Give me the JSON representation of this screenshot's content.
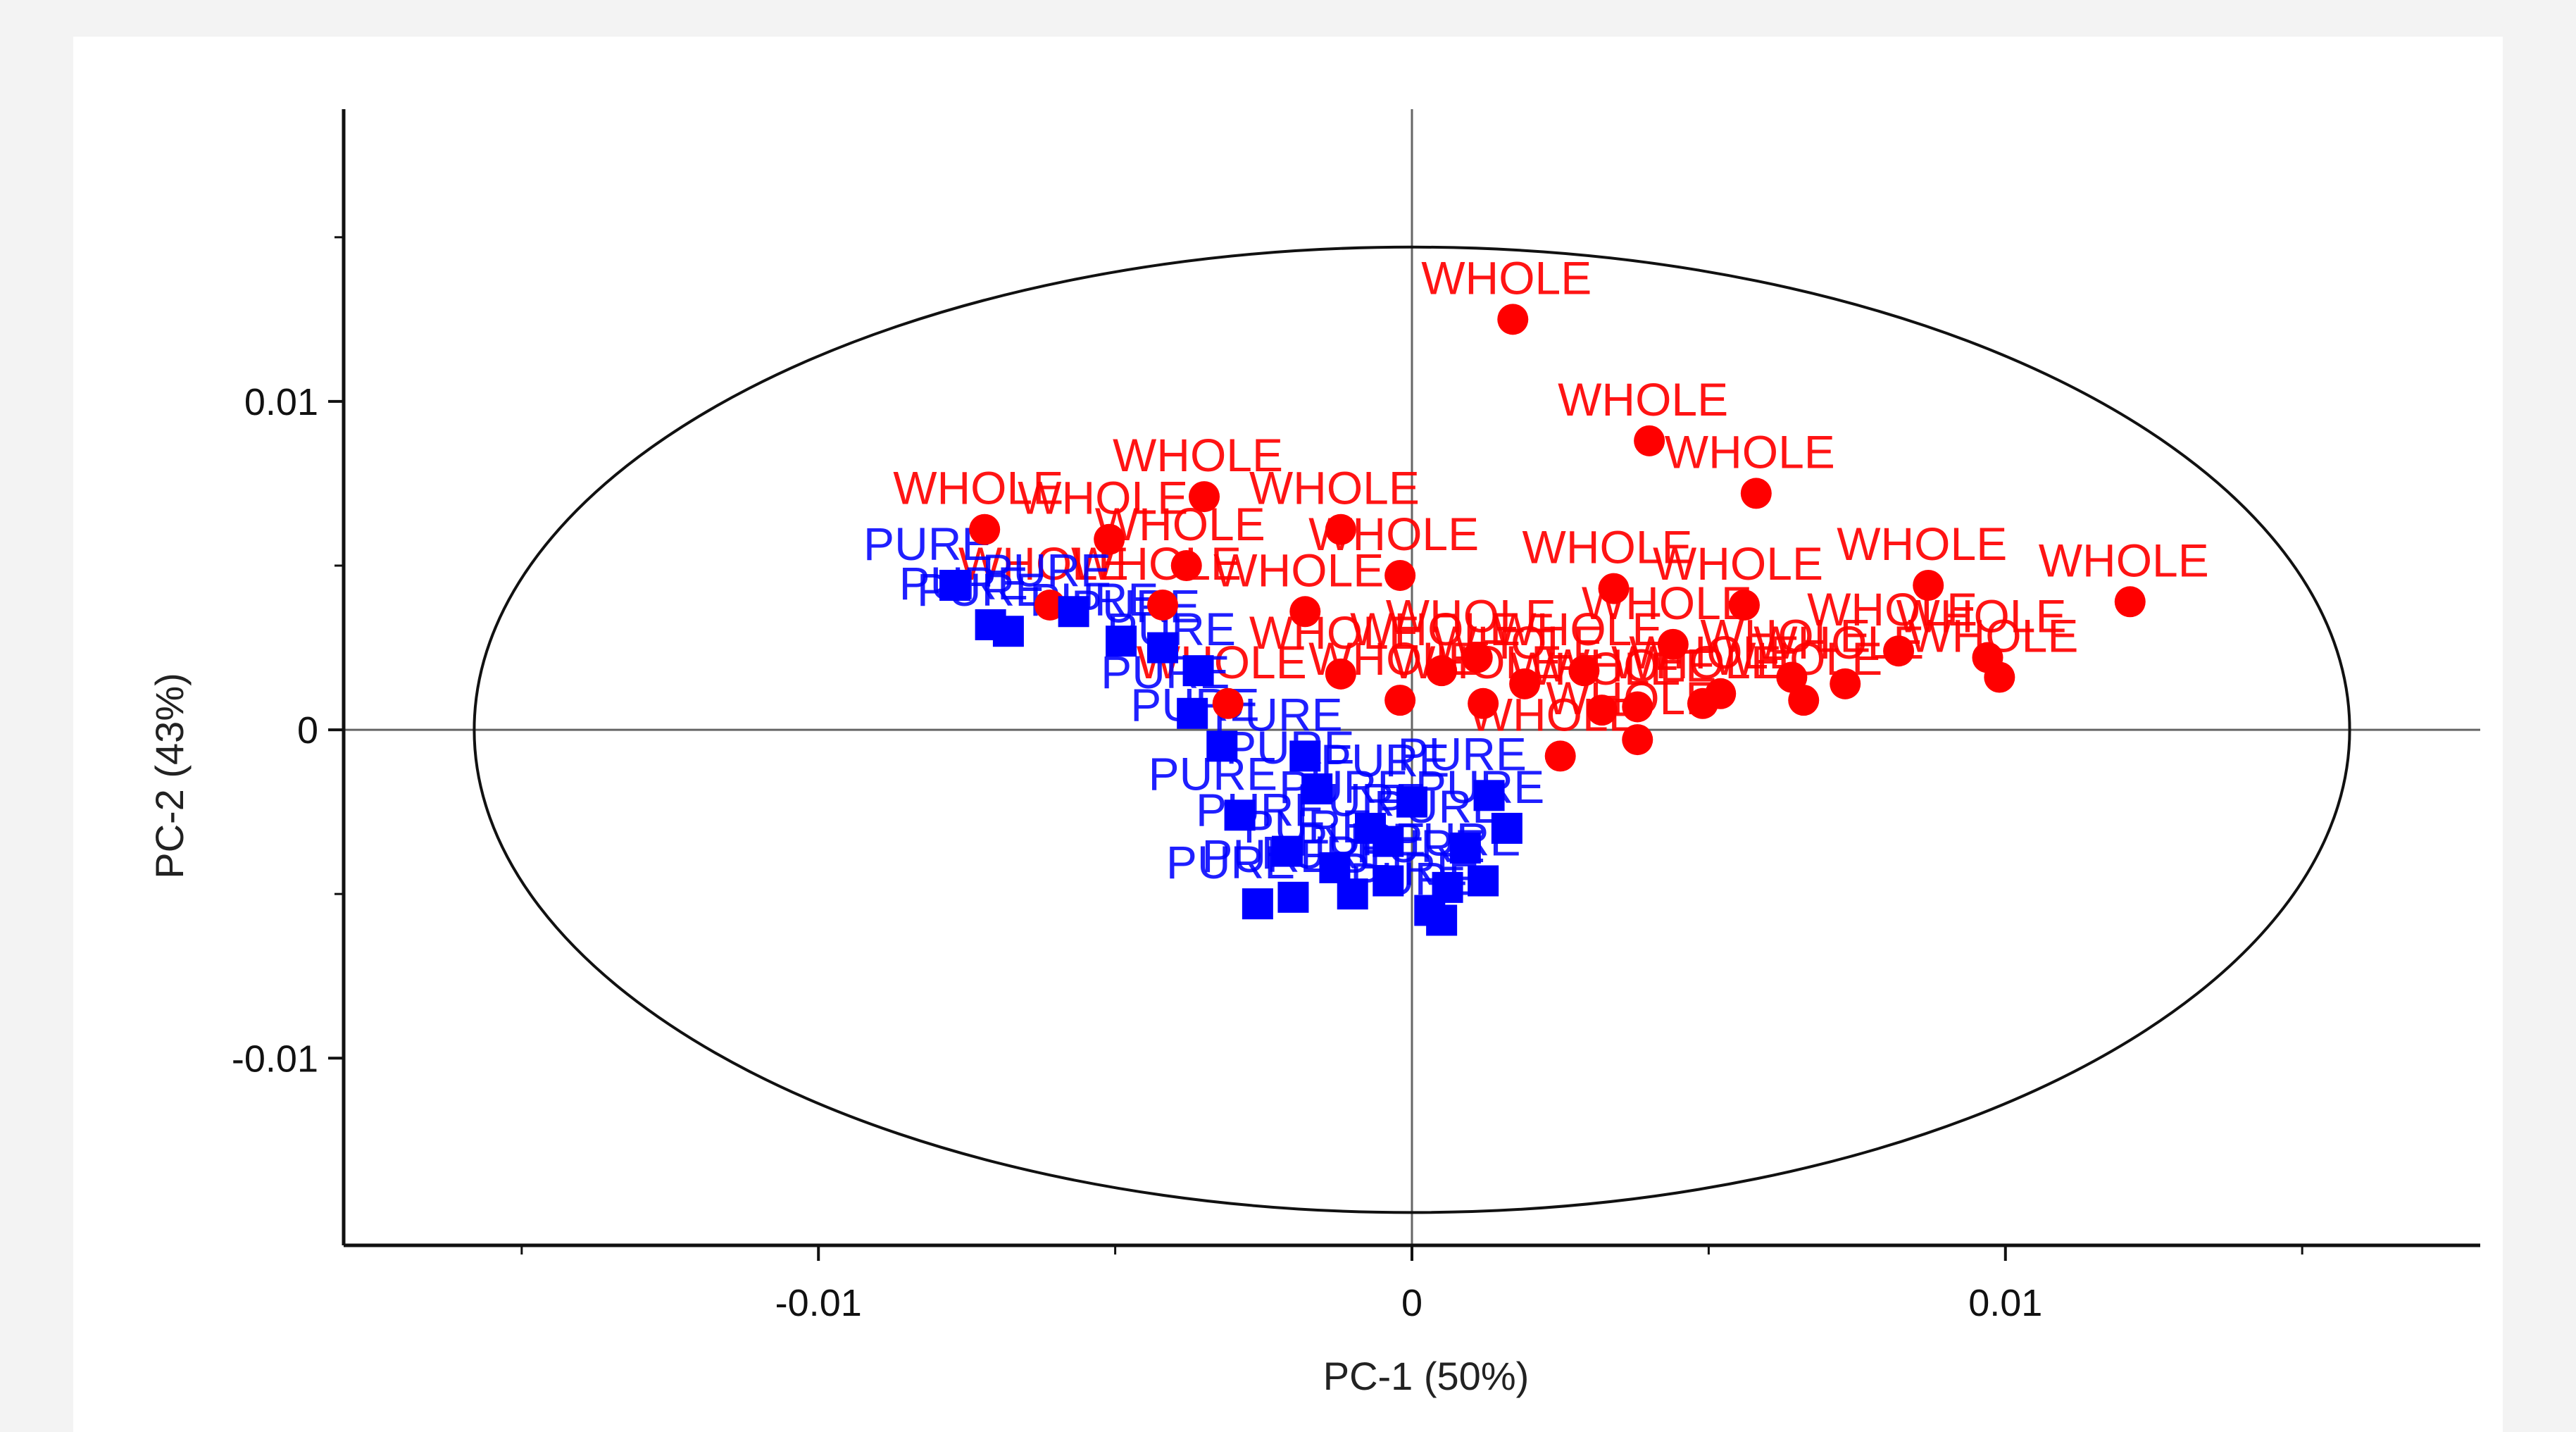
{
  "chart_data": {
    "type": "scatter",
    "title": "",
    "xlabel": "PC-1 (50%)",
    "ylabel": "PC-2 (43%)",
    "xlim": [
      -0.018,
      0.018
    ],
    "ylim": [
      -0.0157,
      0.0189
    ],
    "x_ticks": [
      {
        "value": -0.01,
        "label": "-0.01"
      },
      {
        "value": 0,
        "label": "0"
      },
      {
        "value": 0.01,
        "label": "0.01"
      }
    ],
    "y_ticks": [
      {
        "value": 0.01,
        "label": "0.01"
      },
      {
        "value": 0,
        "label": "0"
      },
      {
        "value": -0.01,
        "label": "-0.01"
      }
    ],
    "x_minor_ticks": [
      -0.015,
      -0.005,
      0.005,
      0.015
    ],
    "y_minor_ticks": [
      0.015,
      0.005,
      -0.005
    ],
    "ellipse": {
      "cx": 0,
      "cy": 0,
      "rx": 0.0158,
      "ry": 0.0147
    },
    "series": [
      {
        "name": "WHOLE",
        "color": "#ff0000",
        "marker": "circle",
        "points": [
          {
            "x": 0.0017,
            "y": 0.0125,
            "label": "WHOLE"
          },
          {
            "x": 0.004,
            "y": 0.0088,
            "label": "WHOLE"
          },
          {
            "x": 0.0058,
            "y": 0.0072,
            "label": "WHOLE"
          },
          {
            "x": 0.0121,
            "y": 0.0039,
            "label": "WHOLE"
          },
          {
            "x": 0.0099,
            "y": 0.0016,
            "label": "WHOLE"
          },
          {
            "x": 0.0097,
            "y": 0.0022,
            "label": "WHOLE"
          },
          {
            "x": 0.0082,
            "y": 0.0024,
            "label": "WHOLE"
          },
          {
            "x": 0.0073,
            "y": 0.0014,
            "label": "WHOLE"
          },
          {
            "x": 0.0066,
            "y": 0.0009,
            "label": "WHOLE"
          },
          {
            "x": 0.0064,
            "y": 0.0016,
            "label": "WHOLE"
          },
          {
            "x": 0.0052,
            "y": 0.0011,
            "label": "WHOLE"
          },
          {
            "x": 0.0049,
            "y": 0.0008,
            "label": "WHOLE"
          },
          {
            "x": 0.0044,
            "y": 0.0026,
            "label": "WHOLE"
          },
          {
            "x": 0.0038,
            "y": 0.0007,
            "label": "WHOLE"
          },
          {
            "x": 0.0038,
            "y": -0.0003,
            "label": "WHOLE"
          },
          {
            "x": 0.0032,
            "y": 0.0006,
            "label": "WHOLE"
          },
          {
            "x": 0.0025,
            "y": -0.0008,
            "label": "WHOLE"
          },
          {
            "x": 0.0019,
            "y": 0.0014,
            "label": "WHOLE"
          },
          {
            "x": 0.0012,
            "y": 0.0008,
            "label": "WHOLE"
          },
          {
            "x": 0.0011,
            "y": 0.0022,
            "label": "WHOLE"
          },
          {
            "x": 0.0005,
            "y": 0.0018,
            "label": "WHOLE"
          },
          {
            "x": -0.0002,
            "y": 0.0009,
            "label": "WHOLE"
          },
          {
            "x": -0.0002,
            "y": 0.0047,
            "label": "WHOLE"
          },
          {
            "x": -0.0012,
            "y": 0.0061,
            "label": "WHOLE"
          },
          {
            "x": -0.0012,
            "y": 0.0017,
            "label": "WHOLE"
          },
          {
            "x": -0.0018,
            "y": 0.0036,
            "label": "WHOLE"
          },
          {
            "x": -0.0035,
            "y": 0.0071,
            "label": "WHOLE"
          },
          {
            "x": -0.0031,
            "y": 0.0008,
            "label": "WHOLE"
          },
          {
            "x": -0.0038,
            "y": 0.005,
            "label": "WHOLE"
          },
          {
            "x": -0.0042,
            "y": 0.0038,
            "label": "WHOLE"
          },
          {
            "x": -0.0061,
            "y": 0.0038,
            "label": "WHOLE"
          },
          {
            "x": -0.0051,
            "y": 0.0058,
            "label": "WHOLE"
          },
          {
            "x": -0.0072,
            "y": 0.0061,
            "label": "WHOLE"
          },
          {
            "x": 0.0034,
            "y": 0.0043,
            "label": "WHOLE"
          },
          {
            "x": 0.0056,
            "y": 0.0038,
            "label": "WHOLE"
          },
          {
            "x": 0.0087,
            "y": 0.0044,
            "label": "WHOLE"
          },
          {
            "x": 0.0029,
            "y": 0.0018,
            "label": "WHOLE"
          }
        ]
      },
      {
        "name": "PURE",
        "color": "#0000ff",
        "marker": "square",
        "points": [
          {
            "x": -0.0077,
            "y": 0.0044,
            "label": "PURE"
          },
          {
            "x": -0.0071,
            "y": 0.0032,
            "label": "PURE"
          },
          {
            "x": -0.0068,
            "y": 0.003,
            "label": "PURE"
          },
          {
            "x": -0.0057,
            "y": 0.0036,
            "label": "PURE"
          },
          {
            "x": -0.0049,
            "y": 0.0027,
            "label": "PURE"
          },
          {
            "x": -0.0042,
            "y": 0.0025,
            "label": "PURE"
          },
          {
            "x": -0.0036,
            "y": 0.0018,
            "label": "PURE"
          },
          {
            "x": -0.0037,
            "y": 0.0005,
            "label": "PURE"
          },
          {
            "x": -0.0032,
            "y": -0.0005,
            "label": "PURE"
          },
          {
            "x": -0.0029,
            "y": -0.0026,
            "label": "PURE"
          },
          {
            "x": -0.0026,
            "y": -0.0053,
            "label": "PURE"
          },
          {
            "x": -0.002,
            "y": -0.0051,
            "label": "PURE"
          },
          {
            "x": -0.0021,
            "y": -0.0037,
            "label": "PURE"
          },
          {
            "x": -0.0016,
            "y": -0.0018,
            "label": "PURE"
          },
          {
            "x": -0.0013,
            "y": -0.0042,
            "label": "PURE"
          },
          {
            "x": -0.001,
            "y": -0.005,
            "label": "PURE"
          },
          {
            "x": -0.0007,
            "y": -0.003,
            "label": "PURE"
          },
          {
            "x": -0.0004,
            "y": -0.0046,
            "label": "PURE"
          },
          {
            "x": 0.0,
            "y": -0.0022,
            "label": "PURE"
          },
          {
            "x": 0.0003,
            "y": -0.0055,
            "label": "PURE"
          },
          {
            "x": 0.0006,
            "y": -0.0048,
            "label": "PURE"
          },
          {
            "x": 0.0009,
            "y": -0.0036,
            "label": "PURE"
          },
          {
            "x": 0.0012,
            "y": -0.0046,
            "label": "PURE"
          },
          {
            "x": 0.0013,
            "y": -0.002,
            "label": "PURE"
          },
          {
            "x": 0.0016,
            "y": -0.003,
            "label": "PURE"
          },
          {
            "x": 0.0005,
            "y": -0.0058,
            "label": "PURE"
          },
          {
            "x": -0.0018,
            "y": -0.0008,
            "label": "PURE"
          },
          {
            "x": -0.0004,
            "y": -0.0034,
            "label": "PURE"
          }
        ]
      }
    ]
  }
}
